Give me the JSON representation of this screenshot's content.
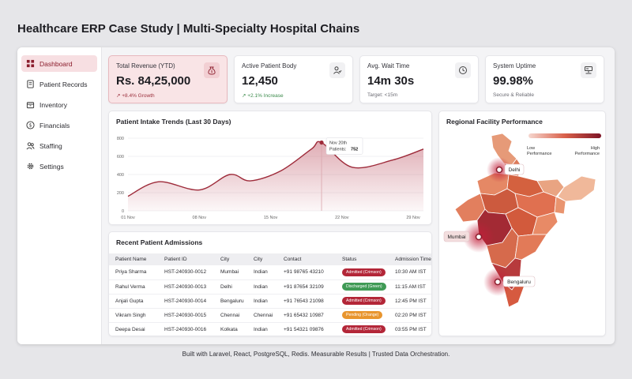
{
  "page_title": "Healthcare ERP Case Study | Multi-Specialty Hospital Chains",
  "sidebar": {
    "items": [
      {
        "label": "Dashboard",
        "icon": "dashboard-icon",
        "active": true
      },
      {
        "label": "Patient Records",
        "icon": "document-icon",
        "active": false
      },
      {
        "label": "Inventory",
        "icon": "box-icon",
        "active": false
      },
      {
        "label": "Financials",
        "icon": "currency-icon",
        "active": false
      },
      {
        "label": "Staffing",
        "icon": "people-icon",
        "active": false
      },
      {
        "label": "Settings",
        "icon": "gear-icon",
        "active": false
      }
    ]
  },
  "kpis": [
    {
      "label": "Total Revenue (YTD)",
      "value": "Rs. 84,25,000",
      "sub": "↗ +8.4% Growth",
      "icon": "money-bag-icon"
    },
    {
      "label": "Active Patient Body",
      "value": "12,450",
      "sub": "↗ +2.1% Increase",
      "icon": "patient-icon"
    },
    {
      "label": "Avg. Wait Time",
      "value": "14m 30s",
      "sub": "Target: <15m",
      "icon": "clock-icon"
    },
    {
      "label": "System Uptime",
      "value": "99.98%",
      "sub": "Secure & Reliable",
      "icon": "server-icon"
    }
  ],
  "chart": {
    "title": "Patient Intake Trends (Last 30 Days)",
    "tooltip": {
      "date": "Nov 20th",
      "label": "Patients:",
      "value": "752"
    }
  },
  "chart_data": {
    "type": "area",
    "title": "Patient Intake Trends (Last 30 Days)",
    "x_ticks": [
      "01 Nov",
      "08 Nov",
      "15 Nov",
      "22 Nov",
      "29 Nov"
    ],
    "y_ticks": [
      0,
      200,
      400,
      600,
      800
    ],
    "ylim": [
      0,
      800
    ],
    "x": [
      1,
      4,
      8,
      11,
      13,
      16,
      19,
      20,
      23,
      27,
      30
    ],
    "values": [
      160,
      320,
      230,
      400,
      330,
      440,
      680,
      752,
      480,
      560,
      680
    ],
    "highlight": {
      "x": 20,
      "value": 752
    },
    "grid": true,
    "colors": {
      "line": "#9e2b3a",
      "fill": "#c66a78"
    }
  },
  "admissions": {
    "title": "Recent Patient Admissions",
    "columns": [
      "Patient Name",
      "Patient ID",
      "City",
      "City",
      "Contact",
      "Status",
      "Admission Time"
    ],
    "rows": [
      {
        "name": "Priya Sharma",
        "id": "HST-240930-0012",
        "city1": "Mumbai",
        "city2": "Indian",
        "contact": "+91 98765 43210",
        "status": "Admitted (Crimson)",
        "color": "#b32638",
        "time": "10:30 AM IST"
      },
      {
        "name": "Rahul Verma",
        "id": "HST-240930-0013",
        "city1": "Delhi",
        "city2": "Indian",
        "contact": "+91 87654 32109",
        "status": "Discharged (Green)",
        "color": "#3f9a55",
        "time": "11:15 AM IST"
      },
      {
        "name": "Anjali Gupta",
        "id": "HST-240930-0014",
        "city1": "Bengaluru",
        "city2": "Indian",
        "contact": "+91 76543 21098",
        "status": "Admitted (Crimson)",
        "color": "#b32638",
        "time": "12:45 PM IST"
      },
      {
        "name": "Vikram Singh",
        "id": "HST-240930-0015",
        "city1": "Chennai",
        "city2": "Chennai",
        "contact": "+91 65432 10987",
        "status": "Pending (Orange)",
        "color": "#e8952e",
        "time": "02:20 PM IST"
      },
      {
        "name": "Deepa Desai",
        "id": "HST-240930-0016",
        "city1": "Kolkata",
        "city2": "Indian",
        "contact": "+91 54321 09876",
        "status": "Admitted (Crimson)",
        "color": "#b32638",
        "time": "03:55 PM IST"
      }
    ]
  },
  "map": {
    "title": "Regional Facility Performance",
    "legend_low": "Low Performance",
    "legend_high": "High Performance",
    "cities": [
      "Delhi",
      "Mumbai",
      "Bengaluru"
    ]
  },
  "footer": "Built with Laravel, React, PostgreSQL, Redis. Measurable Results | Trusted Data Orchestration."
}
